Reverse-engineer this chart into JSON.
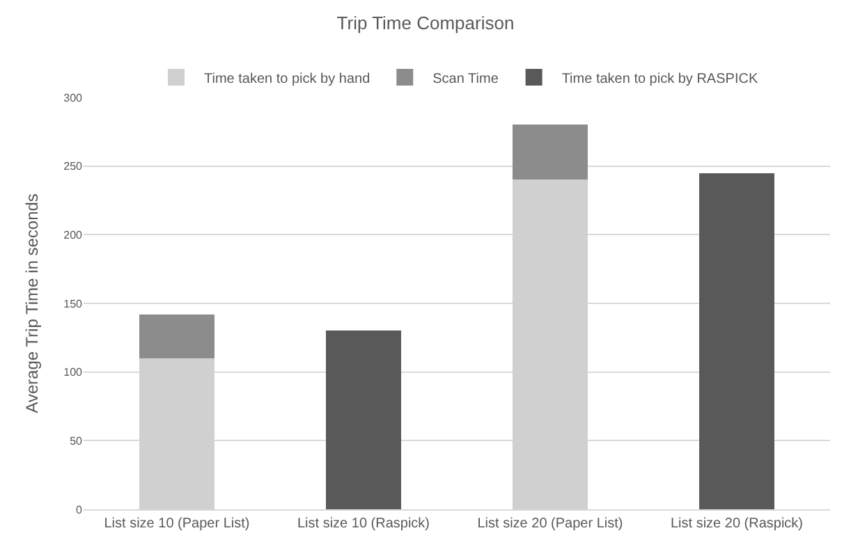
{
  "chart_data": {
    "type": "bar",
    "title": "Trip Time Comparison",
    "ylabel": "Average Trip Time in seconds",
    "categories": [
      "List size 10 (Paper List)",
      "List size 10 (Raspick)",
      "List size 20 (Paper List)",
      "List size 20 (Raspick)"
    ],
    "stacked": true,
    "series": [
      {
        "name": "Time taken to pick by hand",
        "color": "#d0d0d0",
        "values": [
          110,
          null,
          240,
          null
        ]
      },
      {
        "name": "Scan Time",
        "color": "#8c8c8c",
        "values": [
          32,
          null,
          40,
          null
        ]
      },
      {
        "name": "Time taken to pick by RASPICK",
        "color": "#595959",
        "values": [
          null,
          130,
          null,
          245
        ]
      }
    ],
    "ylim": [
      0,
      300
    ],
    "yticks": [
      0,
      50,
      100,
      150,
      200,
      250,
      300
    ],
    "grid": "y",
    "legend": "top"
  }
}
